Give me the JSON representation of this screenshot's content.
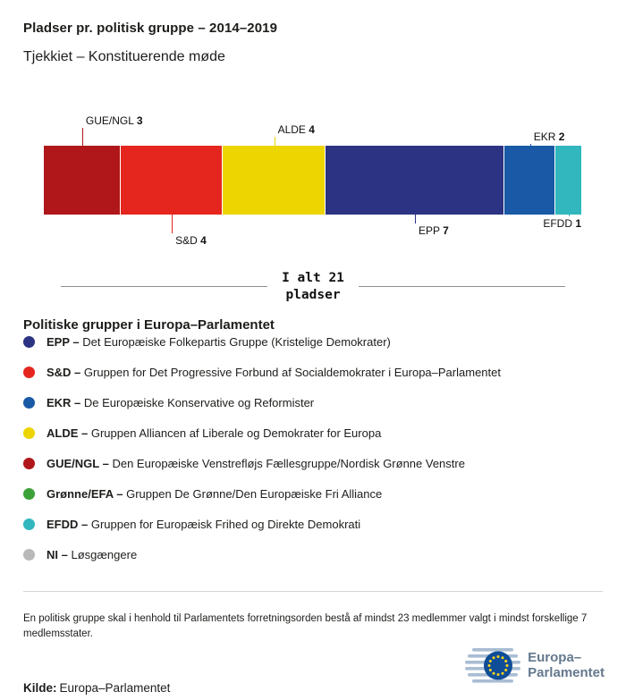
{
  "header": {
    "title": "Pladser pr. politisk gruppe – 2014–2019",
    "subtitle": "Tjekkiet – Konstituerende møde"
  },
  "chart_data": {
    "type": "bar",
    "variant": "horizontal-stacked",
    "title": "Pladser pr. politisk gruppe – 2014–2019",
    "subtitle": "Tjekkiet – Konstituerende møde",
    "total": 21,
    "total_label_line1": "I alt 21",
    "total_label_line2": "pladser",
    "legend_position": "below",
    "segments": [
      {
        "name": "GUE/NGL",
        "value": 3,
        "color": "#b0171a",
        "callout": "top"
      },
      {
        "name": "S&D",
        "value": 4,
        "color": "#e5261f",
        "callout": "bottom"
      },
      {
        "name": "ALDE",
        "value": 4,
        "color": "#ecd500",
        "callout": "top"
      },
      {
        "name": "EPP",
        "value": 7,
        "color": "#2c3382",
        "callout": "bottom"
      },
      {
        "name": "EKR",
        "value": 2,
        "color": "#1959a6",
        "callout": "top"
      },
      {
        "name": "EFDD",
        "value": 1,
        "color": "#31b7bd",
        "callout": "bottom",
        "label_align": "right"
      }
    ]
  },
  "legend": {
    "heading": "Politiske grupper i Europa–Parlamentet",
    "items": [
      {
        "abbr": "EPP –",
        "desc": "Det Europæiske Folkepartis Gruppe (Kristelige Demokrater)",
        "color": "#2c3382"
      },
      {
        "abbr": "S&D –",
        "desc": "Gruppen for Det Progressive Forbund af Socialdemokrater i Europa–Parlamentet",
        "color": "#e5261f"
      },
      {
        "abbr": "EKR –",
        "desc": "De Europæiske Konservative og Reformister",
        "color": "#1959a6"
      },
      {
        "abbr": "ALDE –",
        "desc": "Gruppen Alliancen af Liberale og Demokrater for Europa",
        "color": "#ecd500"
      },
      {
        "abbr": "GUE/NGL –",
        "desc": "Den Europæiske Venstrefløjs Fællesgruppe/Nordisk Grønne Venstre",
        "color": "#b0171a"
      },
      {
        "abbr": "Grønne/EFA –",
        "desc": "Gruppen De Grønne/Den Europæiske Fri Alliance",
        "color": "#3ba138"
      },
      {
        "abbr": "EFDD –",
        "desc": "Gruppen for Europæisk Frihed og Direkte Demokrati",
        "color": "#31b7bd"
      },
      {
        "abbr": "NI –",
        "desc": "Løsgængere",
        "color": "#b9b9b9"
      }
    ]
  },
  "footnote": "En politisk gruppe skal i henhold til Parlamentets forretningsorden bestå af mindst 23 medlemmer valgt i mindst forskellige 7 medlemsstater.",
  "source": {
    "label": "Kilde:",
    "value": "Europa–Parlamentet"
  },
  "logo": {
    "line1": "Europa–",
    "line2": "Parlamentet"
  }
}
